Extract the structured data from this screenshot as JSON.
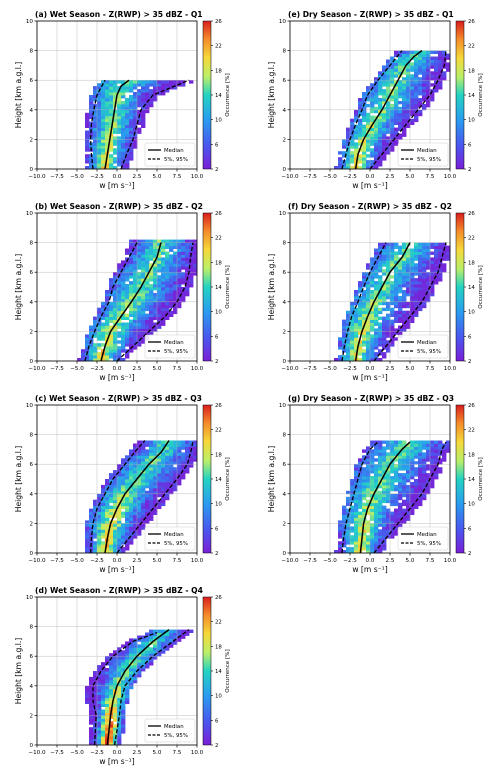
{
  "chart_data": [
    {
      "id": "a",
      "type": "heatmap",
      "title": "(a) Wet Season - Z(RWP) > 35 dBZ - Q1",
      "xlabel": "w [m s⁻¹]",
      "ylabel": "Height [km a.g.l.]",
      "xlim": [
        -10,
        10
      ],
      "ylim": [
        0,
        10
      ],
      "grid": true,
      "xticks": [
        "−10.0",
        "−7.5",
        "−5.0",
        "−2.5",
        "0.0",
        "2.5",
        "5.0",
        "7.5",
        "10.0"
      ],
      "yticks": [
        "0",
        "2",
        "4",
        "6",
        "8",
        "10"
      ],
      "colorbar": {
        "label": "Occurrence [%]",
        "range": [
          2,
          26
        ],
        "ticks": [
          "2",
          "6",
          "10",
          "14",
          "18",
          "22",
          "26"
        ]
      },
      "legend": {
        "placement": "lower-right",
        "entries": [
          "Median",
          "5%, 95%"
        ]
      },
      "top_km": 6.0,
      "skew": 0.6,
      "left_base": -2.5,
      "right_base": 1.5,
      "hot": 0.25,
      "wavy": 0.5,
      "series": [
        {
          "name": "Median",
          "x": [
            -1.5,
            -1.2,
            -0.9,
            -0.6,
            -0.3,
            0.0,
            0.5,
            1.5
          ],
          "y": [
            0,
            1,
            2,
            3,
            4,
            5,
            5.6,
            6.0
          ]
        },
        {
          "name": "5%",
          "x": [
            -3.0,
            -3.2,
            -3.3,
            -3.2,
            -2.9,
            -2.5,
            -1.5
          ],
          "y": [
            0,
            1,
            2,
            3,
            4,
            5,
            6
          ]
        },
        {
          "name": "95%",
          "x": [
            0.5,
            1.2,
            2.0,
            2.5,
            3.0,
            4.5,
            9.0
          ],
          "y": [
            0,
            1,
            2,
            3,
            4,
            5,
            6
          ]
        }
      ]
    },
    {
      "id": "e",
      "type": "heatmap",
      "title": "(e) Dry Season - Z(RWP) > 35 dBZ - Q1",
      "xlabel": "w [m s⁻¹]",
      "ylabel": "Height [km a.g.l.]",
      "xlim": [
        -10,
        10
      ],
      "ylim": [
        0,
        10
      ],
      "grid": true,
      "xticks": [
        "−10.0",
        "−7.5",
        "−5.0",
        "−2.5",
        "0.0",
        "2.5",
        "5.0",
        "7.5",
        "10.0"
      ],
      "yticks": [
        "0",
        "2",
        "4",
        "6",
        "8",
        "10"
      ],
      "colorbar": {
        "label": "Occurrence [%]",
        "range": [
          2,
          26
        ],
        "ticks": [
          "2",
          "6",
          "10",
          "14",
          "18",
          "22",
          "26"
        ]
      },
      "legend": {
        "placement": "lower-right",
        "entries": [
          "Median",
          "5%, 95%"
        ]
      },
      "top_km": 8.0,
      "skew": 1.0,
      "left_base": -2.5,
      "right_base": 1.0,
      "hot": 0.2,
      "wavy": 0.6,
      "series": [
        {
          "name": "Median",
          "x": [
            -1.8,
            -1.5,
            -0.8,
            0.3,
            1.5,
            2.5,
            3.5,
            4.5,
            5.5,
            6.5
          ],
          "y": [
            0,
            1,
            2,
            3,
            4,
            5,
            6,
            7,
            7.6,
            8.0
          ]
        },
        {
          "name": "5%",
          "x": [
            -3.5,
            -3.0,
            -2.5,
            -1.8,
            -1.0,
            -0.3,
            1.0,
            2.5,
            4.0
          ],
          "y": [
            0,
            1,
            2,
            3,
            4,
            5,
            6,
            7,
            8
          ]
        },
        {
          "name": "95%",
          "x": [
            0.0,
            1.5,
            3.0,
            4.5,
            6.0,
            7.5,
            8.5,
            9.3,
            9.5
          ],
          "y": [
            0,
            1,
            2,
            3,
            4,
            5,
            6,
            7,
            8
          ]
        }
      ]
    },
    {
      "id": "b",
      "type": "heatmap",
      "title": "(b) Wet Season - Z(RWP) > 35 dBZ - Q2",
      "xlabel": "w [m s⁻¹]",
      "ylabel": "Height [km a.g.l.]",
      "xlim": [
        -10,
        10
      ],
      "ylim": [
        0,
        10
      ],
      "grid": true,
      "xticks": [
        "−10.0",
        "−7.5",
        "−5.0",
        "−2.5",
        "0.0",
        "2.5",
        "5.0",
        "7.5",
        "10.0"
      ],
      "yticks": [
        "0",
        "2",
        "4",
        "6",
        "8",
        "10"
      ],
      "colorbar": {
        "label": "Occurrence [%]",
        "range": [
          2,
          26
        ],
        "ticks": [
          "2",
          "6",
          "10",
          "14",
          "18",
          "22",
          "26"
        ]
      },
      "legend": {
        "placement": "lower-right",
        "entries": [
          "Median",
          "5%, 95%"
        ]
      },
      "top_km": 8.2,
      "skew": 1.1,
      "left_base": -3.0,
      "right_base": 1.0,
      "hot": 0.22,
      "wavy": 0.5,
      "series": [
        {
          "name": "Median",
          "x": [
            -2.0,
            -1.5,
            -0.8,
            0.5,
            1.8,
            3.0,
            4.0,
            5.0,
            5.5
          ],
          "y": [
            0,
            1,
            2,
            3,
            4,
            5,
            6,
            7,
            8
          ]
        },
        {
          "name": "5%",
          "x": [
            -4.0,
            -3.5,
            -2.8,
            -2.0,
            -1.0,
            -0.5,
            0.5,
            1.5,
            2.5
          ],
          "y": [
            0,
            1,
            2,
            3,
            4,
            5,
            6,
            7,
            8
          ]
        },
        {
          "name": "95%",
          "x": [
            0.0,
            2.0,
            4.0,
            6.0,
            7.5,
            8.5,
            9.0,
            9.2,
            9.5
          ],
          "y": [
            0,
            1,
            2,
            3,
            4,
            5,
            6,
            7,
            8
          ]
        }
      ]
    },
    {
      "id": "f",
      "type": "heatmap",
      "title": "(f) Dry Season - Z(RWP) > 35 dBZ - Q2",
      "xlabel": "w [m s⁻¹]",
      "ylabel": "Height [km a.g.l.]",
      "xlim": [
        -10,
        10
      ],
      "ylim": [
        0,
        10
      ],
      "grid": true,
      "xticks": [
        "−10.0",
        "−7.5",
        "−5.0",
        "−2.5",
        "0.0",
        "2.5",
        "5.0",
        "7.5",
        "10.0"
      ],
      "yticks": [
        "0",
        "2",
        "4",
        "6",
        "8",
        "10"
      ],
      "colorbar": {
        "label": "Occurrence [%]",
        "range": [
          2,
          26
        ],
        "ticks": [
          "2",
          "6",
          "10",
          "14",
          "18",
          "22",
          "26"
        ]
      },
      "legend": {
        "placement": "lower-right",
        "entries": [
          "Median",
          "5%, 95%"
        ]
      },
      "top_km": 8.0,
      "skew": 0.95,
      "left_base": -3.0,
      "right_base": 1.0,
      "hot": 0.2,
      "wavy": 0.6,
      "series": [
        {
          "name": "Median",
          "x": [
            -1.8,
            -1.5,
            -1.0,
            -0.3,
            0.5,
            1.5,
            2.5,
            4.0,
            5.0
          ],
          "y": [
            0,
            1,
            2,
            3,
            4,
            5,
            6,
            7,
            8
          ]
        },
        {
          "name": "5%",
          "x": [
            -3.5,
            -3.2,
            -2.8,
            -2.3,
            -1.5,
            -0.8,
            0.0,
            1.0,
            2.0
          ],
          "y": [
            0,
            1,
            2,
            3,
            4,
            5,
            6,
            7,
            8
          ]
        },
        {
          "name": "95%",
          "x": [
            0.5,
            2.0,
            3.5,
            5.0,
            6.5,
            7.5,
            8.5,
            9.0,
            9.5
          ],
          "y": [
            0,
            1,
            2,
            3,
            4,
            5,
            6,
            7,
            8
          ]
        }
      ]
    },
    {
      "id": "c",
      "type": "heatmap",
      "title": "(c) Wet Season - Z(RWP) > 35 dBZ - Q3",
      "xlabel": "w [m s⁻¹]",
      "ylabel": "Height [km a.g.l.]",
      "xlim": [
        -10,
        10
      ],
      "ylim": [
        0,
        10
      ],
      "grid": true,
      "xticks": [
        "−10.0",
        "−7.5",
        "−5.0",
        "−2.5",
        "0.0",
        "2.5",
        "5.0",
        "7.5",
        "10.0"
      ],
      "yticks": [
        "0",
        "2",
        "4",
        "6",
        "8",
        "10"
      ],
      "colorbar": {
        "label": "Occurrence [%]",
        "range": [
          2,
          26
        ],
        "ticks": [
          "2",
          "6",
          "10",
          "14",
          "18",
          "22",
          "26"
        ]
      },
      "legend": {
        "placement": "lower-right",
        "entries": [
          "Median",
          "5%, 95%"
        ]
      },
      "top_km": 7.6,
      "skew": 1.0,
      "left_base": -3.0,
      "right_base": 0.8,
      "hot": 0.3,
      "wavy": 0.25,
      "series": [
        {
          "name": "Median",
          "x": [
            -1.5,
            -1.2,
            -0.8,
            0.0,
            1.0,
            2.5,
            4.0,
            5.5,
            6.5
          ],
          "y": [
            0,
            1,
            2,
            3,
            4,
            5,
            6,
            6.8,
            7.6
          ]
        },
        {
          "name": "5%",
          "x": [
            -3.3,
            -3.2,
            -3.0,
            -2.5,
            -1.5,
            -0.5,
            1.0,
            2.5,
            3.5
          ],
          "y": [
            0,
            1,
            2,
            3,
            4,
            5,
            6,
            7,
            7.6
          ]
        },
        {
          "name": "95%",
          "x": [
            0.0,
            1.5,
            3.0,
            4.5,
            6.0,
            7.5,
            8.8,
            9.3,
            9.5
          ],
          "y": [
            0,
            1,
            2,
            3,
            4,
            5,
            6,
            7,
            7.6
          ]
        }
      ]
    },
    {
      "id": "g",
      "type": "heatmap",
      "title": "(g) Dry Season - Z(RWP) > 35 dBZ - Q3",
      "xlabel": "w [m s⁻¹]",
      "ylabel": "Height [km a.g.l.]",
      "xlim": [
        -10,
        10
      ],
      "ylim": [
        0,
        10
      ],
      "grid": true,
      "xticks": [
        "−10.0",
        "−7.5",
        "−5.0",
        "−2.5",
        "0.0",
        "2.5",
        "5.0",
        "7.5",
        "10.0"
      ],
      "yticks": [
        "0",
        "2",
        "4",
        "6",
        "8",
        "10"
      ],
      "colorbar": {
        "label": "Occurrence [%]",
        "range": [
          2,
          26
        ],
        "ticks": [
          "2",
          "6",
          "10",
          "14",
          "18",
          "22",
          "26"
        ]
      },
      "legend": {
        "placement": "lower-right",
        "entries": [
          "Median",
          "5%, 95%"
        ]
      },
      "top_km": 7.5,
      "skew": 0.8,
      "left_base": -3.0,
      "right_base": 1.0,
      "hot": 0.22,
      "wavy": 0.7,
      "series": [
        {
          "name": "Median",
          "x": [
            -1.2,
            -1.0,
            -0.8,
            -0.3,
            0.5,
            1.5,
            2.5,
            4.0,
            5.0
          ],
          "y": [
            0,
            1,
            2,
            3,
            4,
            5,
            6,
            7,
            7.5
          ]
        },
        {
          "name": "5%",
          "x": [
            -3.5,
            -3.3,
            -3.0,
            -2.5,
            -2.0,
            -1.5,
            -1.0,
            0.0,
            1.0
          ],
          "y": [
            0,
            1,
            2,
            3,
            4,
            5,
            6,
            7,
            7.5
          ]
        },
        {
          "name": "95%",
          "x": [
            0.5,
            2.0,
            3.5,
            5.0,
            6.5,
            7.5,
            8.5,
            9.0,
            9.5
          ],
          "y": [
            0,
            1,
            2,
            3,
            4,
            5,
            6,
            7,
            7.5
          ]
        }
      ]
    },
    {
      "id": "d",
      "type": "heatmap",
      "title": "(d) Wet Season - Z(RWP) > 35 dBZ - Q4",
      "xlabel": "w [m s⁻¹]",
      "ylabel": "Height [km a.g.l.]",
      "xlim": [
        -10,
        10
      ],
      "ylim": [
        0,
        10
      ],
      "grid": true,
      "xticks": [
        "−10.0",
        "−7.5",
        "−5.0",
        "−2.5",
        "0.0",
        "2.5",
        "5.0",
        "7.5",
        "10.0"
      ],
      "yticks": [
        "0",
        "2",
        "4",
        "6",
        "8",
        "10"
      ],
      "colorbar": {
        "label": "Occurrence [%]",
        "range": [
          2,
          26
        ],
        "ticks": [
          "2",
          "6",
          "10",
          "14",
          "18",
          "22",
          "26"
        ]
      },
      "legend": {
        "placement": "lower-right",
        "entries": [
          "Median",
          "5%, 95%"
        ]
      },
      "top_km": 7.8,
      "skew": 1.0,
      "left_base": -2.5,
      "right_base": 0.5,
      "hot": 0.6,
      "wavy": 0.15,
      "series": [
        {
          "name": "Median",
          "x": [
            -1.2,
            -1.0,
            -0.8,
            -0.5,
            0.0,
            1.0,
            2.5,
            4.5,
            6.5
          ],
          "y": [
            0,
            1,
            2,
            3,
            4,
            5,
            6,
            7,
            7.8
          ]
        },
        {
          "name": "5%",
          "x": [
            -2.8,
            -2.7,
            -2.6,
            -3.0,
            -3.0,
            -2.0,
            -0.5,
            2.0,
            5.0
          ],
          "y": [
            0,
            1,
            2,
            3,
            4,
            5,
            6,
            7,
            7.6
          ]
        },
        {
          "name": "95%",
          "x": [
            -0.3,
            0.0,
            0.3,
            0.5,
            1.0,
            2.5,
            4.5,
            7.0,
            9.0
          ],
          "y": [
            0,
            1,
            2,
            3,
            4,
            5,
            6,
            7,
            7.8
          ]
        }
      ]
    }
  ]
}
